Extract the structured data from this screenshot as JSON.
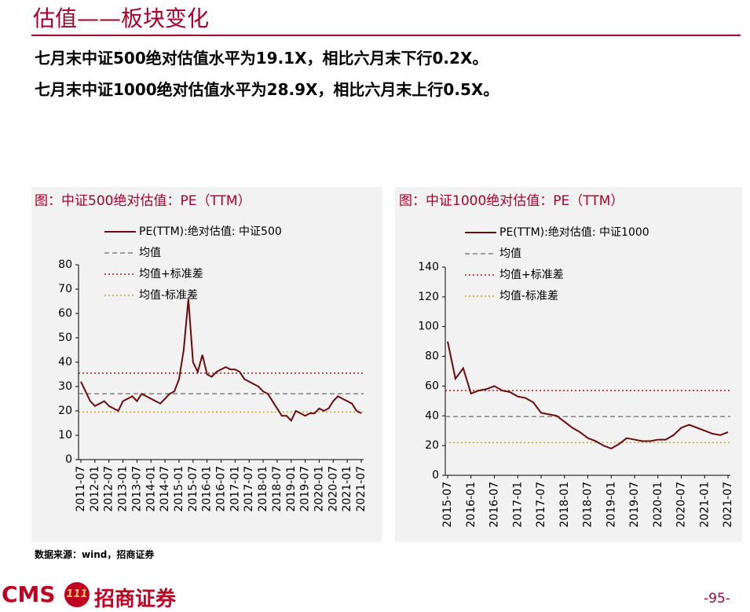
{
  "header": {
    "title": "估值——板块变化",
    "lines": [
      "七月末中证500绝对估值水平为19.1X，相比六月末下行0.2X。",
      "七月末中证1000绝对估值水平为28.9X，相比六月末上行0.5X。"
    ]
  },
  "chart_data": [
    {
      "type": "line",
      "title": "图：中证500绝对估值：PE（TTM）",
      "x": [
        "2011-07",
        "2011-09",
        "2011-11",
        "2012-01",
        "2012-03",
        "2012-05",
        "2012-07",
        "2012-09",
        "2012-11",
        "2013-01",
        "2013-03",
        "2013-05",
        "2013-07",
        "2013-09",
        "2013-11",
        "2014-01",
        "2014-03",
        "2014-05",
        "2014-07",
        "2014-09",
        "2014-11",
        "2015-01",
        "2015-03",
        "2015-05",
        "2015-07",
        "2015-09",
        "2015-11",
        "2016-01",
        "2016-03",
        "2016-05",
        "2016-07",
        "2016-09",
        "2016-11",
        "2017-01",
        "2017-03",
        "2017-05",
        "2017-07",
        "2017-09",
        "2017-11",
        "2018-01",
        "2018-03",
        "2018-05",
        "2018-07",
        "2018-09",
        "2018-11",
        "2019-01",
        "2019-03",
        "2019-05",
        "2019-07",
        "2019-09",
        "2019-11",
        "2020-01",
        "2020-03",
        "2020-05",
        "2020-07",
        "2020-09",
        "2020-11",
        "2021-01",
        "2021-03",
        "2021-05",
        "2021-07"
      ],
      "series": [
        {
          "name": "PE(TTM):绝对估值: 中证500",
          "color": "#6b0a0a",
          "values": [
            32,
            28,
            24,
            22,
            23,
            24,
            22,
            21,
            20,
            24,
            25,
            26,
            24,
            27,
            26,
            25,
            24,
            23,
            25,
            27,
            28,
            33,
            45,
            66,
            40,
            36,
            43,
            35,
            34,
            36,
            37,
            38,
            37,
            37,
            36,
            33,
            32,
            31,
            30,
            28,
            27,
            24,
            21,
            18,
            18,
            16,
            20,
            19,
            18,
            19,
            19,
            21,
            20,
            21,
            24,
            26,
            25,
            24,
            23,
            20,
            19
          ]
        }
      ],
      "hlines": [
        {
          "name": "均值",
          "value": 27,
          "color": "#808080",
          "style": "dashed"
        },
        {
          "name": "均值+标准差",
          "value": 35.5,
          "color": "#9b1c1c",
          "style": "dotted"
        },
        {
          "name": "均值-标准差",
          "value": 19.5,
          "color": "#c9a227",
          "style": "dotted"
        }
      ],
      "xticks": [
        "2011-07",
        "2012-01",
        "2012-07",
        "2013-01",
        "2013-07",
        "2014-01",
        "2014-07",
        "2015-01",
        "2015-07",
        "2016-01",
        "2016-07",
        "2017-01",
        "2017-07",
        "2018-01",
        "2018-07",
        "2019-01",
        "2019-07",
        "2020-01",
        "2020-07",
        "2021-01",
        "2021-07"
      ],
      "ylim": [
        0,
        80
      ],
      "yticks": [
        0,
        10,
        20,
        30,
        40,
        50,
        60,
        70,
        80
      ]
    },
    {
      "type": "line",
      "title": "图：中证1000绝对估值：PE（TTM）",
      "x": [
        "2015-07",
        "2015-09",
        "2015-11",
        "2016-01",
        "2016-03",
        "2016-05",
        "2016-07",
        "2016-09",
        "2016-11",
        "2017-01",
        "2017-03",
        "2017-05",
        "2017-07",
        "2017-09",
        "2017-11",
        "2018-01",
        "2018-03",
        "2018-05",
        "2018-07",
        "2018-09",
        "2018-11",
        "2019-01",
        "2019-03",
        "2019-05",
        "2019-07",
        "2019-09",
        "2019-11",
        "2020-01",
        "2020-03",
        "2020-05",
        "2020-07",
        "2020-09",
        "2020-11",
        "2021-01",
        "2021-03",
        "2021-05",
        "2021-07"
      ],
      "series": [
        {
          "name": "PE(TTM):绝对估值: 中证1000",
          "color": "#6b0a0a",
          "values": [
            90,
            65,
            72,
            55,
            57,
            58,
            60,
            57,
            56,
            53,
            52,
            49,
            42,
            41,
            40,
            36,
            32,
            29,
            25,
            23,
            20,
            18,
            21,
            25,
            24,
            23,
            23,
            24,
            24,
            27,
            32,
            34,
            32,
            30,
            28,
            27,
            29
          ]
        }
      ],
      "hlines": [
        {
          "name": "均值",
          "value": 39.5,
          "color": "#808080",
          "style": "dashed"
        },
        {
          "name": "均值+标准差",
          "value": 57,
          "color": "#9b1c1c",
          "style": "dotted"
        },
        {
          "name": "均值-标准差",
          "value": 22,
          "color": "#c9a227",
          "style": "dotted"
        }
      ],
      "xticks": [
        "2015-07",
        "2016-01",
        "2016-07",
        "2017-01",
        "2017-07",
        "2018-01",
        "2018-07",
        "2019-01",
        "2019-07",
        "2020-01",
        "2020-07",
        "2021-01",
        "2021-07"
      ],
      "ylim": [
        0,
        140
      ],
      "yticks": [
        0,
        20,
        40,
        60,
        80,
        100,
        120,
        140
      ]
    }
  ],
  "source": "数据来源：wind，招商证券",
  "footer": {
    "logo": "CMS",
    "badge": "111",
    "company": "招商证券",
    "page": "-95-"
  }
}
